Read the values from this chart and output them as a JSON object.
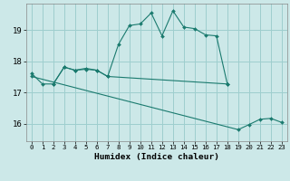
{
  "line_zigzag_x": [
    0,
    1,
    2,
    3,
    4,
    5,
    6,
    7,
    8,
    9,
    10,
    11,
    12,
    13,
    14,
    15,
    16,
    17,
    18
  ],
  "line_zigzag_y": [
    17.62,
    17.28,
    17.28,
    17.82,
    17.72,
    17.78,
    17.72,
    17.52,
    18.55,
    19.15,
    19.2,
    19.55,
    18.82,
    19.62,
    19.1,
    19.05,
    18.85,
    18.82,
    17.28
  ],
  "line_mid_x": [
    2,
    3,
    4,
    5,
    6,
    7,
    18
  ],
  "line_mid_y": [
    17.28,
    17.82,
    17.72,
    17.75,
    17.72,
    17.52,
    17.28
  ],
  "line_diag_x": [
    0,
    19,
    20,
    21,
    22,
    23
  ],
  "line_diag_y": [
    17.52,
    15.82,
    15.98,
    16.15,
    16.18,
    16.05
  ],
  "color": "#1a7a6e",
  "bg_color": "#cce8e8",
  "grid_color": "#9ecece",
  "xlabel": "Humidex (Indice chaleur)",
  "xlim": [
    -0.5,
    23.5
  ],
  "ylim": [
    15.45,
    19.85
  ],
  "yticks": [
    16,
    17,
    18,
    19
  ],
  "xticks": [
    0,
    1,
    2,
    3,
    4,
    5,
    6,
    7,
    8,
    9,
    10,
    11,
    12,
    13,
    14,
    15,
    16,
    17,
    18,
    19,
    20,
    21,
    22,
    23
  ]
}
